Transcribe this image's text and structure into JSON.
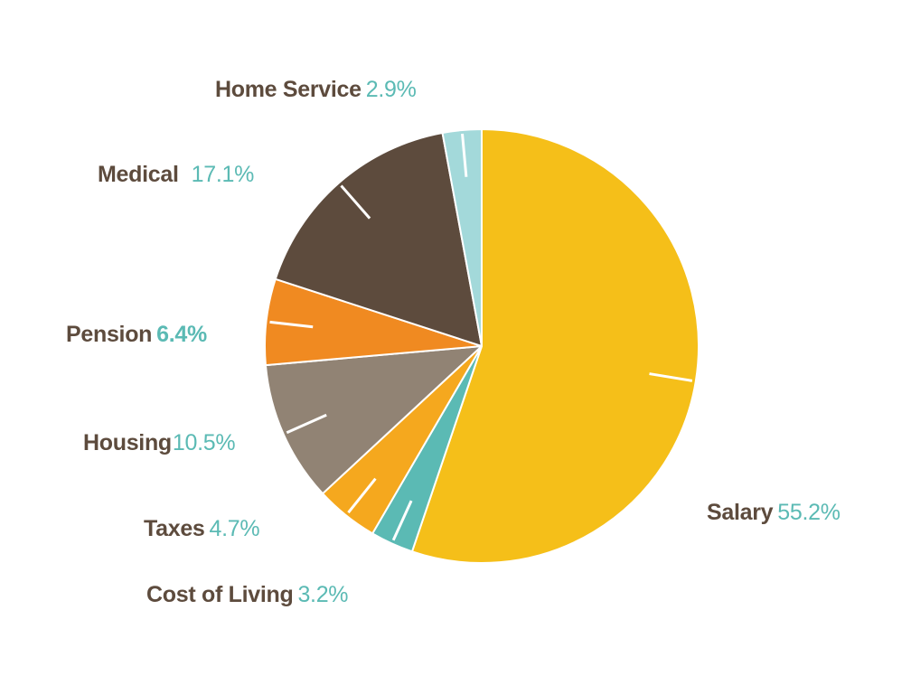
{
  "chart_data": {
    "type": "pie",
    "title": "",
    "slices": [
      {
        "label": "Salary",
        "value": 55.2,
        "value_label": "55.2%",
        "color": "#F5BF19"
      },
      {
        "label": "Cost of Living",
        "value": 3.2,
        "value_label": "3.2%",
        "color": "#5BBAB4"
      },
      {
        "label": "Taxes",
        "value": 4.7,
        "value_label": "4.7%",
        "color": "#F5A81E"
      },
      {
        "label": "Housing",
        "value": 10.5,
        "value_label": "10.5%",
        "color": "#918374"
      },
      {
        "label": "Pension",
        "value": 6.4,
        "value_label": "6.4%",
        "color": "#F08A21"
      },
      {
        "label": "Medical",
        "value": 17.1,
        "value_label": "17.1%",
        "color": "#5D4B3D"
      },
      {
        "label": "Home Service",
        "value": 2.9,
        "value_label": "2.9%",
        "color": "#A3D9DA"
      }
    ],
    "start": "12 o'clock",
    "direction": "clockwise",
    "legend": "none",
    "label_text_color": "#5D4B3D",
    "value_text_color": "#5BBAB4"
  }
}
